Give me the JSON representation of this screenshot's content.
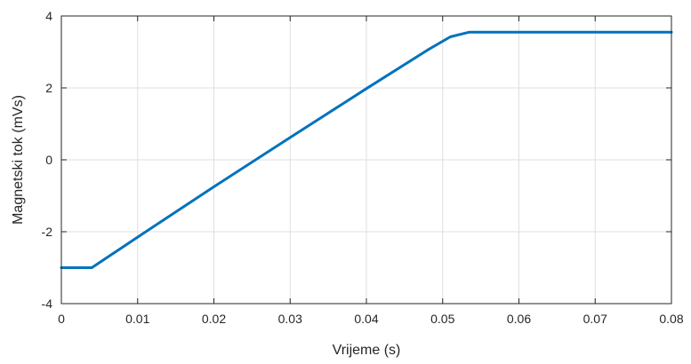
{
  "chart_data": {
    "type": "line",
    "title": "",
    "xlabel": "Vrijeme (s)",
    "ylabel": "Magnetski tok (mVs)",
    "xlim": [
      0,
      0.08
    ],
    "ylim": [
      -4,
      4
    ],
    "grid": true,
    "x_ticks": [
      0,
      0.01,
      0.02,
      0.03,
      0.04,
      0.05,
      0.06,
      0.07,
      0.08
    ],
    "x_tick_labels": [
      "0",
      "0.01",
      "0.02",
      "0.03",
      "0.04",
      "0.05",
      "0.06",
      "0.07",
      "0.08"
    ],
    "y_ticks": [
      -4,
      -2,
      0,
      2,
      4
    ],
    "y_tick_labels": [
      "-4",
      "-2",
      "0",
      "2",
      "4"
    ],
    "line_color": "#0072BD",
    "series": [
      {
        "x": [
          0,
          0.004,
          0.01,
          0.02,
          0.03,
          0.04,
          0.048,
          0.051,
          0.0535,
          0.08
        ],
        "y": [
          -3.0,
          -3.0,
          -2.15,
          -0.75,
          0.62,
          1.98,
          3.05,
          3.42,
          3.55,
          3.55
        ]
      }
    ]
  }
}
